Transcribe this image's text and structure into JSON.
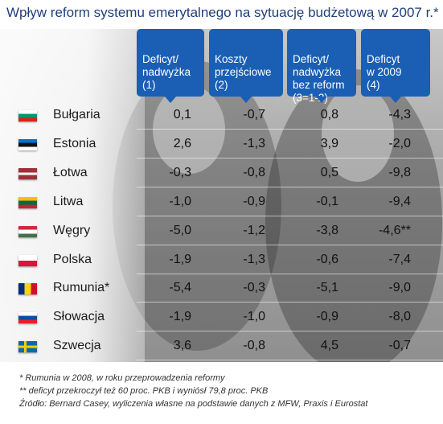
{
  "title": "Wpływ reform systemu emerytalnego na sytuację budżetową w 2007 r.*",
  "columns": [
    "Deficyt/\nnadwyżka\n(1)",
    "Koszty\nprzejściowe\n(2)",
    "Deficyt/\nnadwyżka\nbez reform\n(3=1-2)",
    "Deficyt\nw 2009\n(4)"
  ],
  "rows": [
    {
      "country": "Bułgaria",
      "flag": "bulgaria-flag",
      "values": [
        "0,1",
        "-0,7",
        "0,8",
        "-4,3"
      ]
    },
    {
      "country": "Estonia",
      "flag": "estonia-flag",
      "values": [
        "2,6",
        "-1,3",
        "3,9",
        "-2,0"
      ]
    },
    {
      "country": "Łotwa",
      "flag": "latvia-flag",
      "values": [
        "-0,3",
        "-0,8",
        "0,5",
        "-9,8"
      ]
    },
    {
      "country": "Litwa",
      "flag": "lithuania-flag",
      "values": [
        "-1,0",
        "-0,9",
        "-0,1",
        "-9,4"
      ]
    },
    {
      "country": "Węgry",
      "flag": "hungary-flag",
      "values": [
        "-5,0",
        "-1,2",
        "-3,8",
        "-4,6**"
      ]
    },
    {
      "country": "Polska",
      "flag": "poland-flag",
      "values": [
        "-1,9",
        "-1,3",
        "-0,6",
        "-7,4"
      ]
    },
    {
      "country": "Rumunia*",
      "flag": "romania-flag",
      "values": [
        "-5,4",
        "-0,3",
        "-5,1",
        "-9,0"
      ]
    },
    {
      "country": "Słowacja",
      "flag": "slovakia-flag",
      "values": [
        "-1,9",
        "-1,0",
        "-0,9",
        "-8,0"
      ]
    },
    {
      "country": "Szwecja",
      "flag": "sweden-flag",
      "values": [
        "3,6",
        "-0,8",
        "4,5",
        "-0,7"
      ]
    }
  ],
  "notes": [
    "* Rumunia w 2008, w roku przeprowadzenia reformy",
    "** deficyt przekroczył też 60 proc. PKB i wyniósł 79,8 proc. PKB",
    "Źródło: Bernard Casey, wyliczenia własne na podstawie danych z MFW, Praxis i Eurostat"
  ],
  "colors": {
    "header": "#1a5fb4",
    "title": "#1f3f7a"
  }
}
